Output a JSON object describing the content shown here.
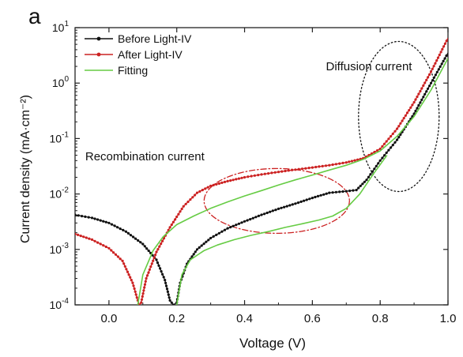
{
  "chart_data": {
    "type": "line",
    "panel_label": "a",
    "xlabel": "Voltage (V)",
    "ylabel": "Current density (mA·cm⁻²)",
    "xlim": [
      -0.1,
      1.0
    ],
    "ylim": [
      0.0001,
      10
    ],
    "yscale": "log",
    "x_ticks": [
      0.0,
      0.2,
      0.4,
      0.6,
      0.8,
      1.0
    ],
    "x_tick_labels": [
      "0.0",
      "0.2",
      "0.4",
      "0.6",
      "0.8",
      "1.0"
    ],
    "y_tick_labels": [
      {
        "base": "10",
        "exp": "-4"
      },
      {
        "base": "10",
        "exp": "-3"
      },
      {
        "base": "10",
        "exp": "-2"
      },
      {
        "base": "10",
        "exp": "-1"
      },
      {
        "base": "10",
        "exp": "0"
      },
      {
        "base": "10",
        "exp": "1"
      }
    ],
    "legend_position": "top-left",
    "grid": false,
    "series": [
      {
        "name": "Before Light-IV",
        "color": "#111111",
        "marker": "dot",
        "points": [
          [
            -0.1,
            0.0042
          ],
          [
            -0.05,
            0.0037
          ],
          [
            0.0,
            0.003
          ],
          [
            0.05,
            0.0021
          ],
          [
            0.1,
            0.00125
          ],
          [
            0.14,
            0.00065
          ],
          [
            0.165,
            0.00028
          ],
          [
            0.18,
            0.00012
          ],
          [
            0.19,
            0.0001
          ],
          [
            0.2,
            0.00011
          ],
          [
            0.21,
            0.00025
          ],
          [
            0.23,
            0.00055
          ],
          [
            0.26,
            0.001
          ],
          [
            0.3,
            0.0016
          ],
          [
            0.35,
            0.0024
          ],
          [
            0.4,
            0.0032
          ],
          [
            0.45,
            0.0042
          ],
          [
            0.5,
            0.0054
          ],
          [
            0.55,
            0.0067
          ],
          [
            0.6,
            0.0085
          ],
          [
            0.65,
            0.0105
          ],
          [
            0.7,
            0.0112
          ],
          [
            0.73,
            0.0118
          ],
          [
            0.76,
            0.018
          ],
          [
            0.8,
            0.04
          ],
          [
            0.85,
            0.095
          ],
          [
            0.9,
            0.28
          ],
          [
            0.95,
            1.0
          ],
          [
            1.0,
            3.5
          ]
        ]
      },
      {
        "name": "After Light-IV",
        "color": "#cc2222",
        "marker": "dot",
        "points": [
          [
            -0.1,
            0.0019
          ],
          [
            -0.05,
            0.0015
          ],
          [
            0.0,
            0.00105
          ],
          [
            0.04,
            0.00062
          ],
          [
            0.07,
            0.00025
          ],
          [
            0.085,
            0.00012
          ],
          [
            0.09,
            0.0001
          ],
          [
            0.095,
            0.00011
          ],
          [
            0.11,
            0.0003
          ],
          [
            0.14,
            0.0009
          ],
          [
            0.18,
            0.0025
          ],
          [
            0.22,
            0.006
          ],
          [
            0.26,
            0.0105
          ],
          [
            0.3,
            0.014
          ],
          [
            0.35,
            0.017
          ],
          [
            0.4,
            0.02
          ],
          [
            0.45,
            0.0225
          ],
          [
            0.5,
            0.025
          ],
          [
            0.55,
            0.0275
          ],
          [
            0.6,
            0.03
          ],
          [
            0.65,
            0.033
          ],
          [
            0.7,
            0.037
          ],
          [
            0.75,
            0.044
          ],
          [
            0.8,
            0.065
          ],
          [
            0.85,
            0.15
          ],
          [
            0.9,
            0.45
          ],
          [
            0.95,
            1.6
          ],
          [
            1.0,
            6.5
          ]
        ]
      },
      {
        "name": "Fitting",
        "color": "#66cc44",
        "marker": "none",
        "points": [
          [
            0.085,
            0.0001
          ],
          [
            0.1,
            0.00035
          ],
          [
            0.13,
            0.00095
          ],
          [
            0.16,
            0.0017
          ],
          [
            0.2,
            0.0028
          ],
          [
            0.25,
            0.004
          ],
          [
            0.3,
            0.0055
          ],
          [
            0.35,
            0.0072
          ],
          [
            0.4,
            0.0092
          ],
          [
            0.45,
            0.0115
          ],
          [
            0.5,
            0.0145
          ],
          [
            0.55,
            0.018
          ],
          [
            0.6,
            0.022
          ],
          [
            0.65,
            0.027
          ],
          [
            0.7,
            0.033
          ],
          [
            0.75,
            0.042
          ],
          [
            0.8,
            0.06
          ],
          [
            0.85,
            0.11
          ],
          [
            0.9,
            0.25
          ],
          [
            0.95,
            0.75
          ],
          [
            1.0,
            2.8
          ]
        ]
      },
      {
        "name": "",
        "color": "#66cc44",
        "marker": "none",
        "points": [
          [
            0.2,
            0.0001
          ],
          [
            0.215,
            0.00035
          ],
          [
            0.24,
            0.00065
          ],
          [
            0.28,
            0.00095
          ],
          [
            0.32,
            0.0012
          ],
          [
            0.37,
            0.0015
          ],
          [
            0.42,
            0.0018
          ],
          [
            0.47,
            0.0021
          ],
          [
            0.52,
            0.0025
          ],
          [
            0.57,
            0.0029
          ],
          [
            0.62,
            0.0034
          ],
          [
            0.66,
            0.004
          ],
          [
            0.7,
            0.0055
          ],
          [
            0.74,
            0.01
          ],
          [
            0.78,
            0.023
          ],
          [
            0.82,
            0.05
          ]
        ]
      }
    ],
    "annotations": [
      {
        "text": "Diffusion current",
        "x": 0.64,
        "y": 2.0
      },
      {
        "text": "Recombination current",
        "x": -0.07,
        "y": 0.048
      }
    ],
    "ellipses": [
      {
        "name": "diffusion-ellipse",
        "cx": 0.855,
        "cy": 0.25,
        "color": "#111111",
        "style": "dotted"
      },
      {
        "name": "recombination-ellipse",
        "cx": 0.495,
        "cy": 0.0075,
        "color": "#cc2222",
        "style": "dash-dot"
      }
    ]
  }
}
